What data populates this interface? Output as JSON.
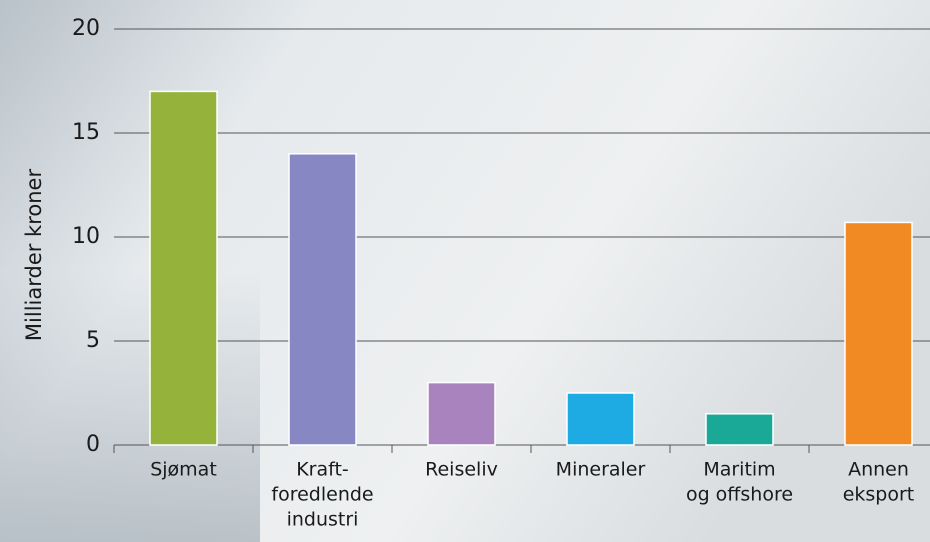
{
  "chart_data": {
    "type": "bar",
    "y_label": "Milliarder kroner",
    "categories": [
      [
        "Sjømat"
      ],
      [
        "Kraft-",
        "foredlende",
        "industri"
      ],
      [
        "Reiseliv"
      ],
      [
        "Mineraler"
      ],
      [
        "Maritim",
        "og offshore"
      ],
      [
        "Annen",
        "eksport"
      ]
    ],
    "values": [
      17,
      14,
      3,
      2.5,
      1.5,
      10.7
    ],
    "colors": [
      "#95b23b",
      "#8687c3",
      "#a883be",
      "#1eaae2",
      "#1aa997",
      "#f18a22"
    ],
    "ylim": [
      0,
      20
    ],
    "yticks": [
      0,
      5,
      10,
      15,
      20
    ],
    "grid": true
  }
}
